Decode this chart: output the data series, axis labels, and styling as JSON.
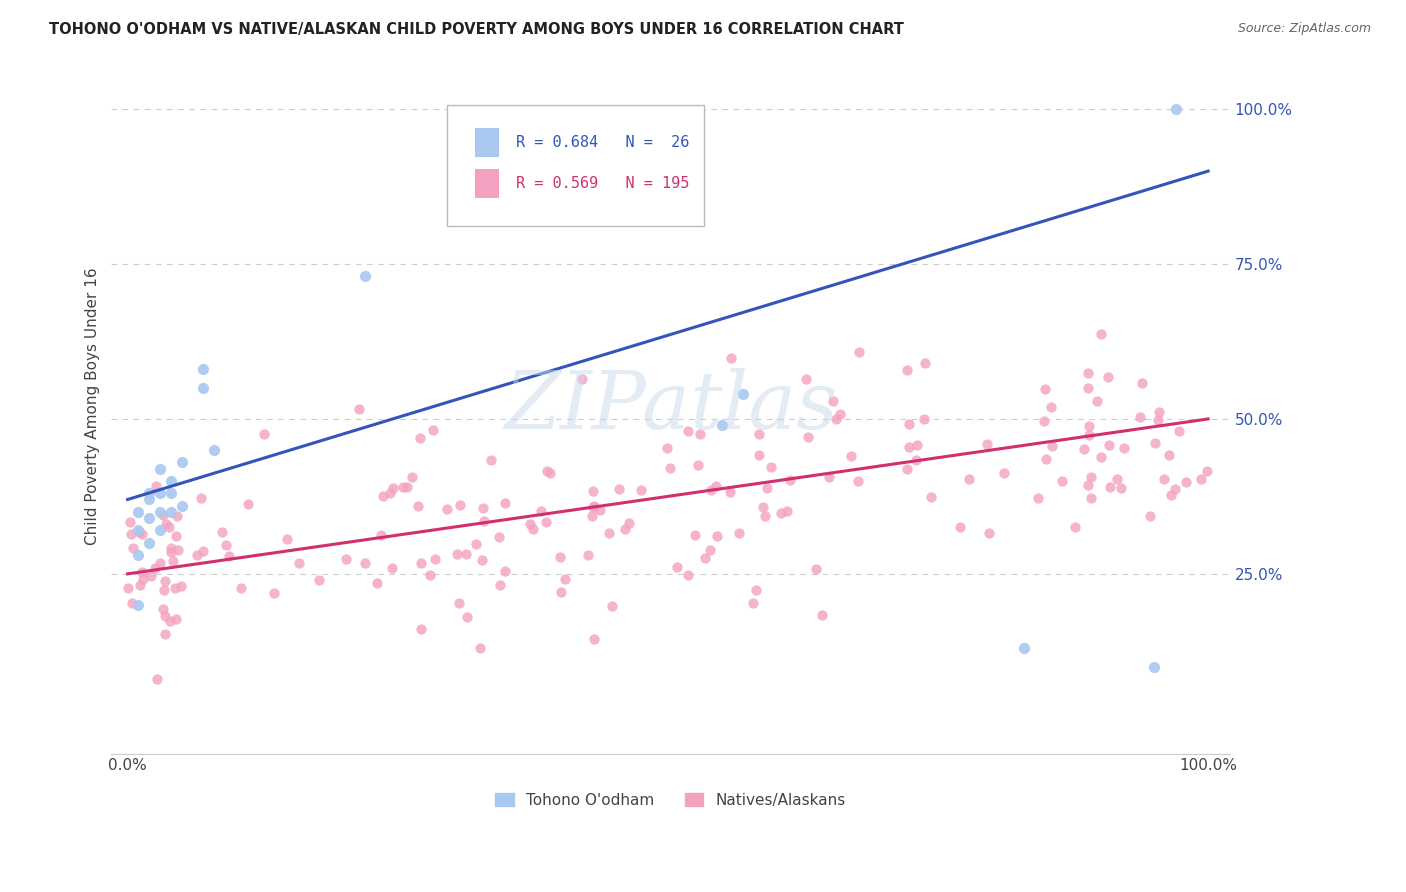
{
  "title": "TOHONO O'ODHAM VS NATIVE/ALASKAN CHILD POVERTY AMONG BOYS UNDER 16 CORRELATION CHART",
  "source": "Source: ZipAtlas.com",
  "ylabel": "Child Poverty Among Boys Under 16",
  "watermark": "ZIPatlas",
  "legend_label1": "Tohono O'odham",
  "legend_label2": "Natives/Alaskans",
  "R1": 0.684,
  "N1": 26,
  "R2": 0.569,
  "N2": 195,
  "color1": "#A8C8F0",
  "color2": "#F4A0C0",
  "line_color1": "#3355BB",
  "line_color2": "#D03070",
  "grid_color": "#CCCCCC",
  "blue_line_x0": 0.0,
  "blue_line_y0": 0.37,
  "blue_line_x1": 1.0,
  "blue_line_y1": 0.9,
  "pink_line_x0": 0.0,
  "pink_line_y0": 0.25,
  "pink_line_x1": 1.0,
  "pink_line_y1": 0.5,
  "xmin": 0.0,
  "xmax": 1.0,
  "ymin": 0.0,
  "ymax": 1.05,
  "yticks": [
    0.25,
    0.5,
    0.75,
    1.0
  ],
  "yticklabels": [
    "25.0%",
    "50.0%",
    "75.0%",
    "100.0%"
  ]
}
